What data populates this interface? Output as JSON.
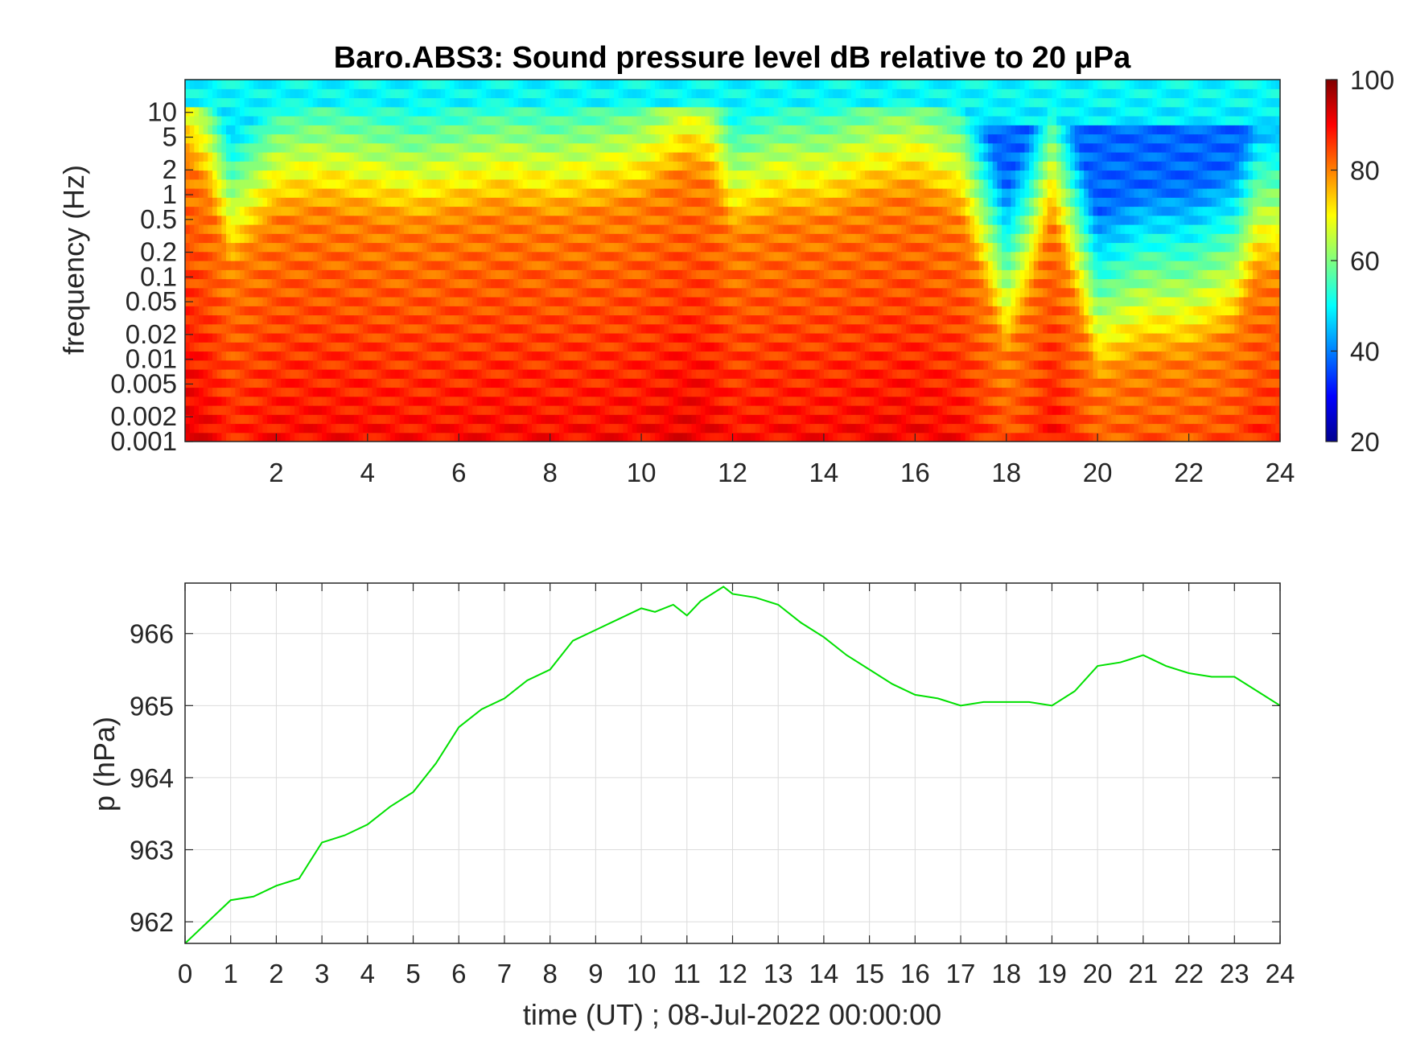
{
  "chart_data": [
    {
      "type": "heatmap",
      "title": "Baro.ABS3: Sound pressure level dB relative to 20 μPa",
      "xlabel": "",
      "ylabel": "frequency (Hz)",
      "x_range": [
        0,
        24
      ],
      "x_ticks": [
        2,
        4,
        6,
        8,
        10,
        12,
        14,
        16,
        18,
        20,
        22,
        24
      ],
      "y_scale": "log",
      "y_range": [
        0.001,
        25
      ],
      "y_ticks": [
        0.001,
        0.002,
        0.005,
        0.01,
        0.02,
        0.05,
        0.1,
        0.2,
        0.5,
        1,
        2,
        5,
        10
      ],
      "y_tick_labels": [
        "0.001",
        "0.002",
        "0.005",
        "0.01",
        "0.02",
        "0.05",
        "0.1",
        "0.2",
        "0.5",
        "1",
        "2",
        "5",
        "10"
      ],
      "colormap": "jet",
      "colorbar": {
        "range": [
          20,
          100
        ],
        "ticks": [
          "20",
          "40",
          "60",
          "80",
          "100"
        ],
        "placement": "right"
      },
      "data_description_note": "",
      "band_top_hz_by_hour": [
        [
          0,
          3.0
        ],
        [
          0.5,
          1.0
        ],
        [
          1,
          0.12
        ],
        [
          2,
          0.5
        ],
        [
          3,
          0.6
        ],
        [
          4,
          0.5
        ],
        [
          5,
          0.4
        ],
        [
          6,
          0.5
        ],
        [
          7,
          0.6
        ],
        [
          8,
          0.5
        ],
        [
          9,
          0.6
        ],
        [
          10,
          0.8
        ],
        [
          11,
          2.0
        ],
        [
          11.5,
          1.5
        ],
        [
          12,
          0.3
        ],
        [
          13,
          0.5
        ],
        [
          14,
          0.5
        ],
        [
          15,
          0.8
        ],
        [
          16,
          1.0
        ],
        [
          17,
          0.5
        ],
        [
          17.6,
          0.05
        ],
        [
          18,
          0.01
        ],
        [
          18.5,
          0.05
        ],
        [
          19,
          0.5
        ],
        [
          19.5,
          0.05
        ],
        [
          20,
          0.005
        ],
        [
          21,
          0.01
        ],
        [
          22,
          0.01
        ],
        [
          23,
          0.02
        ],
        [
          23.5,
          0.1
        ],
        [
          24,
          0.1
        ]
      ]
    },
    {
      "type": "line",
      "title": "",
      "xlabel": "time (UT) ; 08-Jul-2022 00:00:00",
      "ylabel": "p (hPa)",
      "xlim": [
        0,
        24
      ],
      "ylim": [
        961.7,
        966.7
      ],
      "x_ticks": [
        "0",
        "1",
        "2",
        "3",
        "4",
        "5",
        "6",
        "7",
        "8",
        "9",
        "10",
        "11",
        "12",
        "13",
        "14",
        "15",
        "16",
        "17",
        "18",
        "19",
        "20",
        "21",
        "22",
        "23",
        "24"
      ],
      "y_ticks": [
        "962",
        "963",
        "964",
        "965",
        "966"
      ],
      "grid": true,
      "line_color": "#00e000",
      "series": [
        {
          "x": [
            0,
            0.5,
            1,
            1.5,
            2,
            2.5,
            3,
            3.5,
            4,
            4.5,
            5,
            5.5,
            6,
            6.5,
            7,
            7.5,
            8,
            8.5,
            9,
            9.5,
            10,
            10.3,
            10.7,
            11,
            11.3,
            11.8,
            12,
            12.5,
            13,
            13.5,
            14,
            14.5,
            15,
            15.5,
            16,
            16.5,
            17,
            17.5,
            18,
            18.5,
            19,
            19.5,
            20,
            20.5,
            21,
            21.5,
            22,
            22.5,
            23,
            23.5,
            24
          ],
          "y": [
            961.7,
            962.0,
            962.3,
            962.35,
            962.5,
            962.6,
            963.1,
            963.2,
            963.35,
            963.6,
            963.8,
            964.2,
            964.7,
            964.95,
            965.1,
            965.35,
            965.5,
            965.9,
            966.05,
            966.2,
            966.35,
            966.3,
            966.4,
            966.25,
            966.45,
            966.65,
            966.55,
            966.5,
            966.4,
            966.15,
            965.95,
            965.7,
            965.5,
            965.3,
            965.15,
            965.1,
            965.0,
            965.05,
            965.05,
            965.05,
            965.0,
            965.2,
            965.55,
            965.6,
            965.7,
            965.55,
            965.45,
            965.4,
            965.4,
            965.2,
            965.0
          ]
        }
      ]
    }
  ]
}
